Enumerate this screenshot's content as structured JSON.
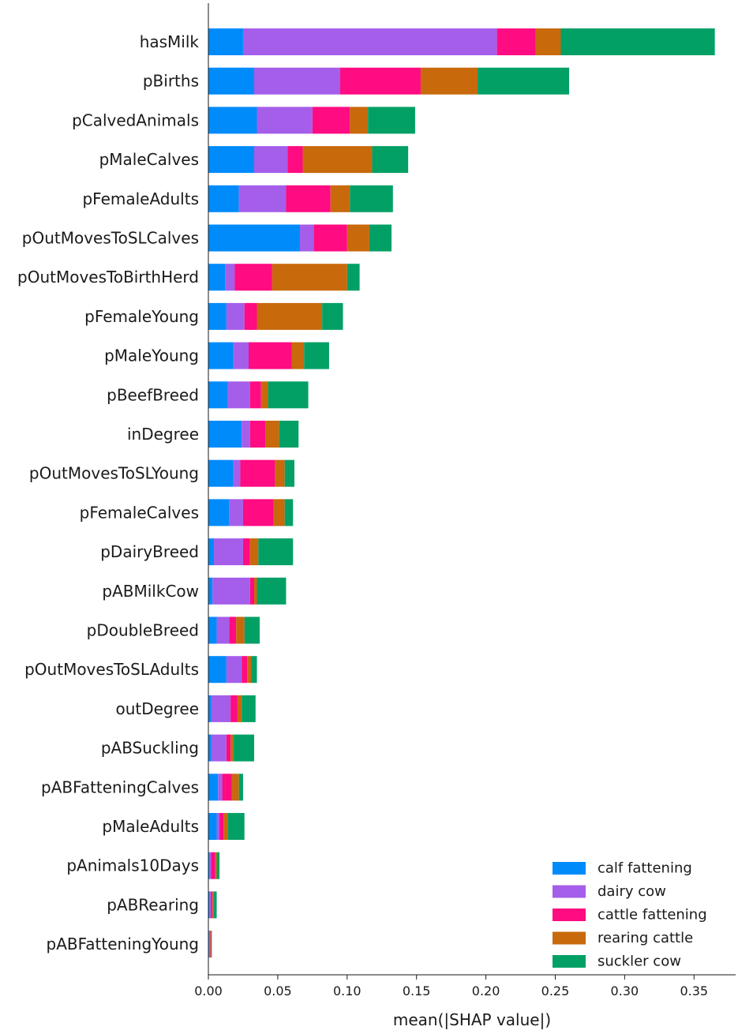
{
  "chart_data": {
    "type": "bar",
    "orientation": "horizontal",
    "stacked": true,
    "xlabel": "mean(|SHAP value|)",
    "ylabel": "",
    "title": "",
    "xlim": [
      0,
      0.38
    ],
    "xticks": [
      "0.00",
      "0.05",
      "0.10",
      "0.15",
      "0.20",
      "0.25",
      "0.30",
      "0.35"
    ],
    "grid": false,
    "legend_position": "bottom-right",
    "categories": [
      "hasMilk",
      "pBirths",
      "pCalvedAnimals",
      "pMaleCalves",
      "pFemaleAdults",
      "pOutMovesToSLCalves",
      "pOutMovesToBirthHerd",
      "pFemaleYoung",
      "pMaleYoung",
      "pBeefBreed",
      "inDegree",
      "pOutMovesToSLYoung",
      "pFemaleCalves",
      "pDairyBreed",
      "pABMilkCow",
      "pDoubleBreed",
      "pOutMovesToSLAdults",
      "outDegree",
      "pABSuckling",
      "pABFatteningCalves",
      "pMaleAdults",
      "pAnimals10Days",
      "pABRearing",
      "pABFatteningYoung"
    ],
    "series": [
      {
        "name": "calf fattening",
        "color": "#008bfb",
        "values": [
          0.025,
          0.033,
          0.035,
          0.033,
          0.022,
          0.066,
          0.012,
          0.013,
          0.018,
          0.014,
          0.024,
          0.018,
          0.015,
          0.004,
          0.003,
          0.006,
          0.013,
          0.002,
          0.002,
          0.007,
          0.006,
          0.001,
          0.001,
          0.0005
        ]
      },
      {
        "name": "dairy cow",
        "color": "#a55eea",
        "values": [
          0.183,
          0.062,
          0.04,
          0.024,
          0.034,
          0.01,
          0.007,
          0.013,
          0.011,
          0.016,
          0.006,
          0.005,
          0.01,
          0.021,
          0.027,
          0.009,
          0.011,
          0.014,
          0.011,
          0.003,
          0.002,
          0.001,
          0.001,
          0.0005
        ]
      },
      {
        "name": "cattle fattening",
        "color": "#ff0b82",
        "values": [
          0.028,
          0.058,
          0.027,
          0.011,
          0.032,
          0.024,
          0.027,
          0.009,
          0.031,
          0.008,
          0.011,
          0.025,
          0.022,
          0.005,
          0.003,
          0.005,
          0.004,
          0.005,
          0.003,
          0.007,
          0.003,
          0.003,
          0.001,
          0.0005
        ]
      },
      {
        "name": "rearing cattle",
        "color": "#c8690c",
        "values": [
          0.018,
          0.041,
          0.013,
          0.05,
          0.014,
          0.016,
          0.054,
          0.047,
          0.009,
          0.005,
          0.01,
          0.007,
          0.008,
          0.006,
          0.002,
          0.006,
          0.003,
          0.003,
          0.002,
          0.005,
          0.003,
          0.001,
          0.001,
          0.0005
        ]
      },
      {
        "name": "suckler cow",
        "color": "#03a066",
        "values": [
          0.111,
          0.066,
          0.034,
          0.026,
          0.031,
          0.016,
          0.009,
          0.015,
          0.018,
          0.029,
          0.014,
          0.007,
          0.006,
          0.025,
          0.021,
          0.011,
          0.004,
          0.01,
          0.015,
          0.003,
          0.012,
          0.002,
          0.002,
          0.0005
        ]
      }
    ]
  }
}
